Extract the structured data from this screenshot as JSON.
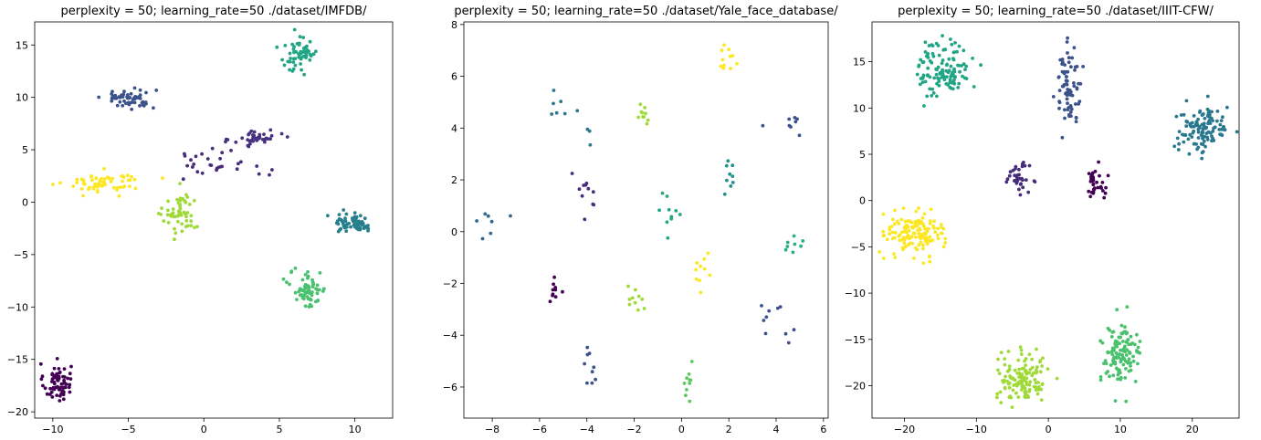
{
  "chart_data": [
    {
      "type": "scatter",
      "title": "perplexity = 50; learning_rate=50 ./dataset/IMFDB/",
      "xlim": [
        -11.2,
        12.5
      ],
      "ylim": [
        -20.6,
        17.2
      ],
      "xticks": [
        -10,
        -5,
        0,
        5,
        10
      ],
      "yticks": [
        -20,
        -15,
        -10,
        -5,
        0,
        5,
        10,
        15
      ],
      "grid": false,
      "clusters": [
        {
          "color": "#440154",
          "cx": -9.7,
          "cy": -17.2,
          "sx": 0.45,
          "sy": 0.9,
          "n": 70
        },
        {
          "color": "#3b528b",
          "cx": -5.0,
          "cy": 9.9,
          "sx": 0.9,
          "sy": 0.5,
          "n": 55
        },
        {
          "color": "#fde725",
          "cx": -6.6,
          "cy": 1.9,
          "sx": 1.2,
          "sy": 0.5,
          "n": 65
        },
        {
          "color": "#9fda3a",
          "cx": -1.5,
          "cy": -1.2,
          "sx": 0.6,
          "sy": 1.1,
          "n": 55
        },
        {
          "color": "#472c7a",
          "cx": 1.0,
          "cy": 3.8,
          "sx": 1.6,
          "sy": 0.7,
          "n": 30
        },
        {
          "color": "#46327e",
          "cx": 3.5,
          "cy": 6.1,
          "sx": 0.8,
          "sy": 0.4,
          "n": 40
        },
        {
          "color": "#21a585",
          "cx": 6.3,
          "cy": 14.1,
          "sx": 0.6,
          "sy": 0.9,
          "n": 60
        },
        {
          "color": "#277f8e",
          "cx": 10.0,
          "cy": -2.0,
          "sx": 0.7,
          "sy": 0.45,
          "n": 60
        },
        {
          "color": "#4ac16d",
          "cx": 6.9,
          "cy": -8.3,
          "sx": 0.6,
          "sy": 0.9,
          "n": 65
        }
      ]
    },
    {
      "type": "scatter",
      "title": "perplexity = 50; learning_rate=50 ./dataset/Yale_face_database/",
      "xlim": [
        -9.2,
        6.2
      ],
      "ylim": [
        -7.2,
        8.1
      ],
      "xticks": [
        -8,
        -6,
        -4,
        -2,
        0,
        2,
        4,
        6
      ],
      "yticks": [
        -6,
        -4,
        -2,
        0,
        2,
        4,
        6,
        8
      ],
      "grid": false,
      "clusters": [
        {
          "color": "#fde725",
          "cx": 1.9,
          "cy": 6.8,
          "sx": 0.15,
          "sy": 0.35,
          "n": 11
        },
        {
          "color": "#2a788e",
          "cx": -5.2,
          "cy": 4.7,
          "sx": 0.3,
          "sy": 0.25,
          "n": 7
        },
        {
          "color": "#2a788e",
          "cx": -3.9,
          "cy": 4.1,
          "sx": 0.1,
          "sy": 0.35,
          "n": 3
        },
        {
          "color": "#a0da39",
          "cx": -1.6,
          "cy": 4.4,
          "sx": 0.15,
          "sy": 0.3,
          "n": 10
        },
        {
          "color": "#3b528b",
          "cx": 4.6,
          "cy": 4.1,
          "sx": 0.4,
          "sy": 0.3,
          "n": 8
        },
        {
          "color": "#21918c",
          "cx": 2.0,
          "cy": 2.1,
          "sx": 0.15,
          "sy": 0.4,
          "n": 9
        },
        {
          "color": "#472d7b",
          "cx": -4.0,
          "cy": 1.5,
          "sx": 0.4,
          "sy": 0.5,
          "n": 11
        },
        {
          "color": "#22a884",
          "cx": -0.5,
          "cy": 0.9,
          "sx": 0.4,
          "sy": 0.35,
          "n": 10
        },
        {
          "color": "#31688e",
          "cx": -8.1,
          "cy": 0.3,
          "sx": 0.3,
          "sy": 0.3,
          "n": 7
        },
        {
          "color": "#2ab07f",
          "cx": 4.7,
          "cy": -0.4,
          "sx": 0.25,
          "sy": 0.25,
          "n": 8
        },
        {
          "color": "#fde725",
          "cx": 0.9,
          "cy": -1.6,
          "sx": 0.25,
          "sy": 0.4,
          "n": 10
        },
        {
          "color": "#440154",
          "cx": -5.4,
          "cy": -2.2,
          "sx": 0.2,
          "sy": 0.25,
          "n": 10
        },
        {
          "color": "#a0da39",
          "cx": -2.0,
          "cy": -2.5,
          "sx": 0.2,
          "sy": 0.3,
          "n": 10
        },
        {
          "color": "#3b528b",
          "cx": 3.9,
          "cy": -3.5,
          "sx": 0.4,
          "sy": 0.4,
          "n": 10
        },
        {
          "color": "#3b528b",
          "cx": -3.9,
          "cy": -5.1,
          "sx": 0.15,
          "sy": 0.4,
          "n": 9
        },
        {
          "color": "#5ec962",
          "cx": 0.3,
          "cy": -5.9,
          "sx": 0.1,
          "sy": 0.35,
          "n": 10
        }
      ]
    },
    {
      "type": "scatter",
      "title": "perplexity = 50; learning_rate=50 ./dataset/IIIT-CFW/",
      "xlim": [
        -24.5,
        26.5
      ],
      "ylim": [
        -23.5,
        19.3
      ],
      "xticks": [
        -20,
        -10,
        0,
        10,
        20
      ],
      "yticks": [
        -20,
        -15,
        -10,
        -5,
        0,
        5,
        10,
        15
      ],
      "grid": false,
      "clusters": [
        {
          "color": "#21a585",
          "cx": -14.5,
          "cy": 14.2,
          "sx": 1.8,
          "sy": 1.6,
          "n": 120
        },
        {
          "color": "#3b528b",
          "cx": 2.8,
          "cy": 12.4,
          "sx": 0.9,
          "sy": 2.0,
          "n": 75
        },
        {
          "color": "#2a788e",
          "cx": 21.5,
          "cy": 7.6,
          "sx": 1.8,
          "sy": 1.3,
          "n": 120
        },
        {
          "color": "#472c7a",
          "cx": -4.2,
          "cy": 2.5,
          "sx": 0.8,
          "sy": 0.7,
          "n": 35
        },
        {
          "color": "#440154",
          "cx": 6.5,
          "cy": 1.8,
          "sx": 0.7,
          "sy": 1.0,
          "n": 35
        },
        {
          "color": "#fde725",
          "cx": -18.5,
          "cy": -3.5,
          "sx": 2.0,
          "sy": 1.2,
          "n": 140
        },
        {
          "color": "#a0da39",
          "cx": -3.5,
          "cy": -19.2,
          "sx": 1.8,
          "sy": 1.3,
          "n": 130
        },
        {
          "color": "#4ac16d",
          "cx": 10.0,
          "cy": -16.8,
          "sx": 1.4,
          "sy": 1.6,
          "n": 120
        }
      ]
    }
  ]
}
